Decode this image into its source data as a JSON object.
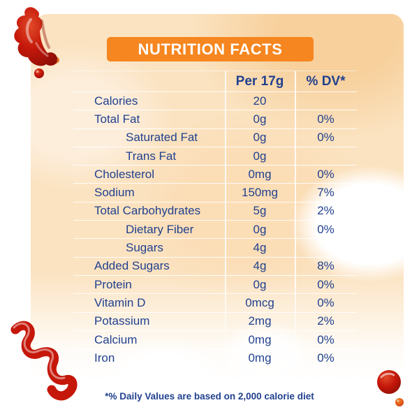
{
  "title": "NUTRITION FACTS",
  "columns": {
    "amount": "Per 17g",
    "dv": "% DV*"
  },
  "rows": [
    {
      "label": "Calories",
      "amount": "20",
      "dv": "",
      "indent": false
    },
    {
      "label": "Total Fat",
      "amount": "0g",
      "dv": "0%",
      "indent": false
    },
    {
      "label": "Saturated Fat",
      "amount": "0g",
      "dv": "0%",
      "indent": true
    },
    {
      "label": "Trans Fat",
      "amount": "0g",
      "dv": "",
      "indent": true
    },
    {
      "label": "Cholesterol",
      "amount": "0mg",
      "dv": "0%",
      "indent": false
    },
    {
      "label": "Sodium",
      "amount": "150mg",
      "dv": "7%",
      "indent": false
    },
    {
      "label": "Total Carbohydrates",
      "amount": "5g",
      "dv": "2%",
      "indent": false
    },
    {
      "label": "Dietary Fiber",
      "amount": "0g",
      "dv": "0%",
      "indent": true
    },
    {
      "label": "Sugars",
      "amount": "4g",
      "dv": "",
      "indent": true
    },
    {
      "label": "Added Sugars",
      "amount": "4g",
      "dv": "8%",
      "indent": false
    },
    {
      "label": "Protein",
      "amount": "0g",
      "dv": "0%",
      "indent": false
    },
    {
      "label": "Vitamin D",
      "amount": "0mcg",
      "dv": "0%",
      "indent": false
    },
    {
      "label": "Potassium",
      "amount": "2mg",
      "dv": "2%",
      "indent": false
    },
    {
      "label": "Calcium",
      "amount": "0mg",
      "dv": "0%",
      "indent": false
    },
    {
      "label": "Iron",
      "amount": "0mg",
      "dv": "0%",
      "indent": false
    }
  ],
  "footnote": "*% Daily Values are based on 2,000 calorie diet",
  "colors": {
    "banner": "#f6861f",
    "navy": "#21418f",
    "wash": "#fbe3c1",
    "ketchup": "#c5170a"
  },
  "decorations": [
    "ketchup-splat-top-left",
    "ketchup-squiggle-bottom-left",
    "ketchup-drop-bottom-right"
  ]
}
